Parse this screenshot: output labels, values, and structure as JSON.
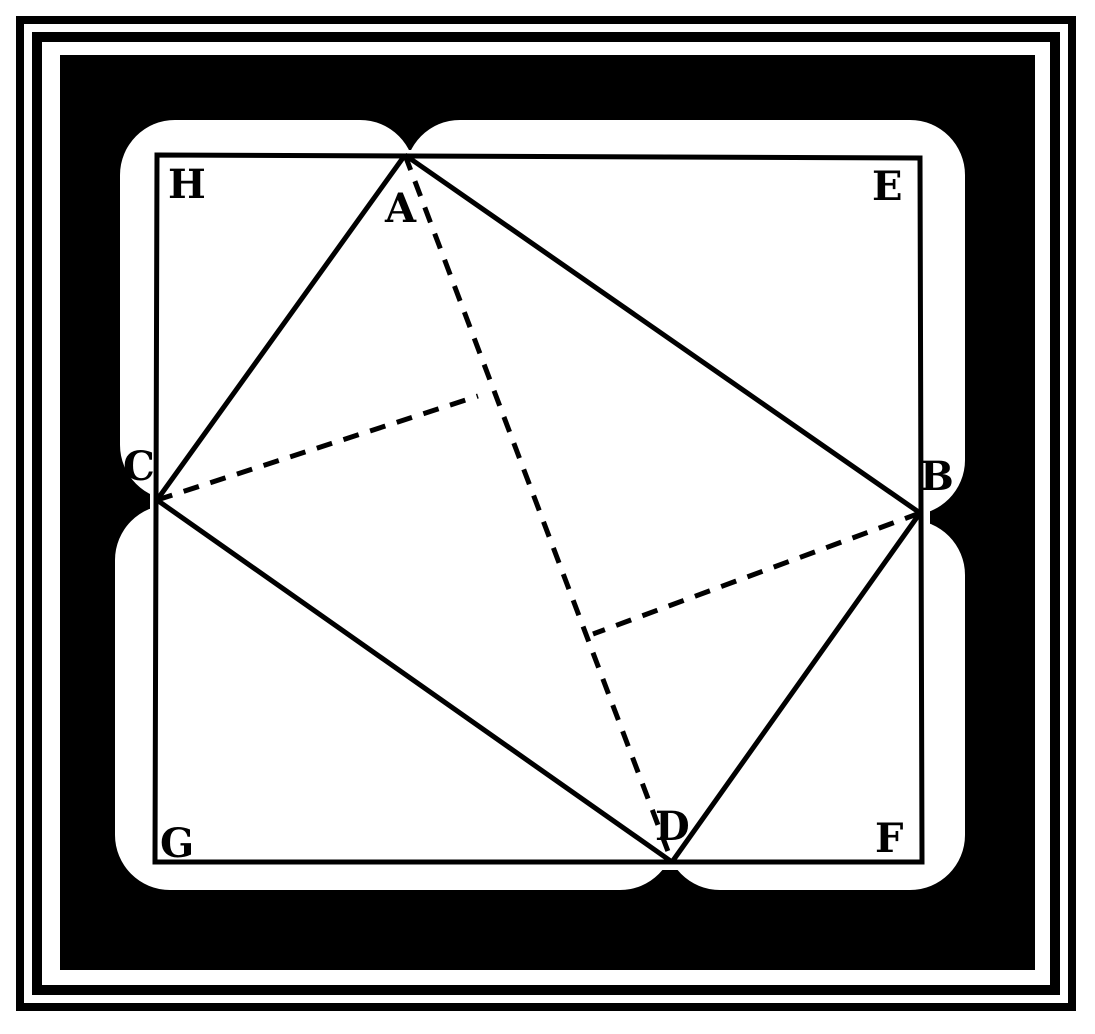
{
  "colors": {
    "ink": "#000000",
    "paper": "#ffffff"
  },
  "labels": {
    "A": "A",
    "B": "B",
    "C": "C",
    "D": "D",
    "E": "E",
    "F": "F",
    "G": "G",
    "H": "H"
  }
}
